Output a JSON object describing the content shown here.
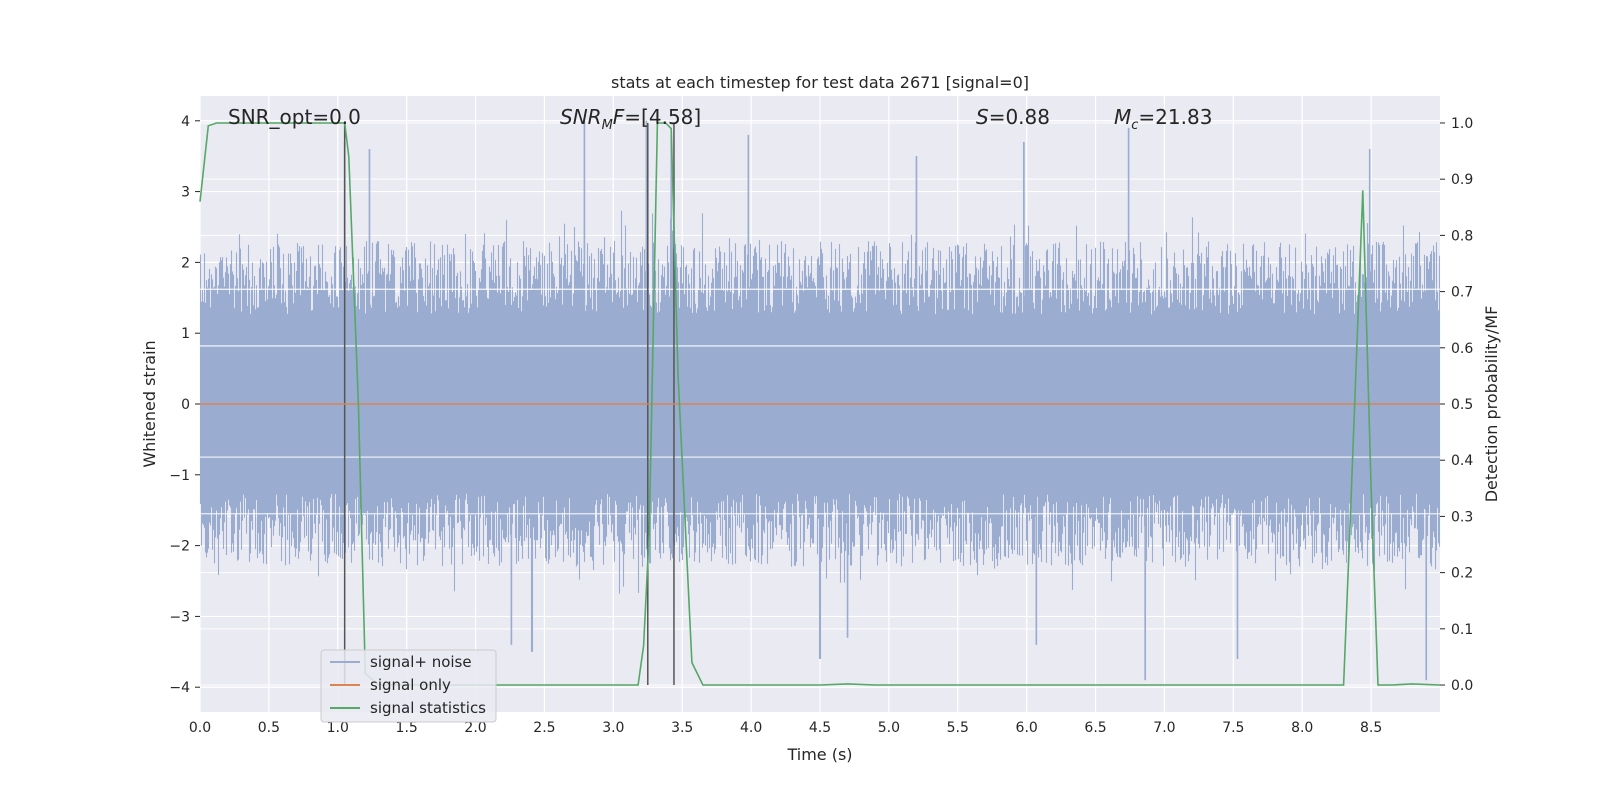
{
  "chart_data": {
    "type": "line",
    "title": "stats at each timestep for test data 2671 [signal=0]",
    "xlabel": "Time (s)",
    "ylabel": "Whitened strain",
    "ylabel_right": "Detection probability/MF",
    "xlim": [
      0.0,
      9.0
    ],
    "ylim": [
      -4.35,
      4.35
    ],
    "ylim_right": [
      -0.048,
      1.048
    ],
    "x_ticks": [
      "0.0",
      "0.5",
      "1.0",
      "1.5",
      "2.0",
      "2.5",
      "3.0",
      "3.5",
      "4.0",
      "4.5",
      "5.0",
      "5.5",
      "6.0",
      "6.5",
      "7.0",
      "7.5",
      "8.0",
      "8.5"
    ],
    "y_ticks": [
      "4",
      "3",
      "2",
      "1",
      "0",
      "−1",
      "−2",
      "−3",
      "−4"
    ],
    "y_ticks_right": [
      "1.0",
      "0.9",
      "0.8",
      "0.7",
      "0.6",
      "0.5",
      "0.4",
      "0.3",
      "0.2",
      "0.1",
      "0.0"
    ],
    "annotations": {
      "snr_opt": "SNR_opt=0.0",
      "snr_mf_sym": "SNR",
      "snr_mf_sub": "M",
      "snr_mf_rest": "F=[4.58]",
      "s_sym": "S",
      "s_rest": "=0.88",
      "mc_sym": "M",
      "mc_sub": "c",
      "mc_rest": "=21.83"
    },
    "legend": {
      "placement": "lower-left",
      "entries": [
        "signal+ noise",
        "signal only",
        "signal statistics"
      ]
    },
    "grid": true,
    "noise_envelope": {
      "typical_abs_max": 2.3,
      "peak_times": [
        1.05,
        1.23,
        2.79,
        3.24,
        3.42,
        3.98,
        5.2,
        5.98,
        6.74,
        8.49
      ],
      "peak_values": [
        3.7,
        3.6,
        4.0,
        4.0,
        3.8,
        3.8,
        3.5,
        3.7,
        3.9,
        3.6
      ],
      "trough_times": [
        2.26,
        2.41,
        4.5,
        4.7,
        6.07,
        6.86,
        7.53,
        8.9
      ],
      "trough_values": [
        -3.4,
        -3.5,
        -3.6,
        -3.3,
        -3.4,
        -3.9,
        -3.6,
        -3.9
      ]
    },
    "signal_only": {
      "value": 0.0
    },
    "signal_statistics": {
      "x": [
        0.0,
        0.06,
        0.12,
        0.5,
        1.0,
        1.05,
        1.08,
        1.15,
        1.2,
        1.3,
        1.5,
        2.0,
        2.5,
        3.0,
        3.18,
        3.22,
        3.26,
        3.32,
        3.38,
        3.42,
        3.47,
        3.57,
        3.65,
        3.8,
        4.0,
        4.5,
        4.7,
        4.9,
        5.5,
        6.0,
        7.0,
        8.0,
        8.3,
        8.35,
        8.44,
        8.5,
        8.55,
        8.65,
        8.8,
        9.0
      ],
      "y": [
        0.86,
        0.995,
        1.0,
        1.0,
        1.0,
        1.0,
        0.94,
        0.5,
        0.02,
        0.0,
        0.0,
        0.0,
        0.0,
        0.0,
        0.0,
        0.07,
        0.27,
        1.0,
        1.0,
        0.99,
        0.55,
        0.04,
        0.0,
        0.0,
        0.0,
        0.0,
        0.002,
        0.0,
        0.0,
        0.0,
        0.0,
        0.0,
        0.0,
        0.3,
        0.88,
        0.35,
        0.0,
        0.0,
        0.002,
        0.0
      ]
    },
    "detection_markers": [
      1.05,
      3.25,
      3.44
    ],
    "colors": {
      "background": "#eaeaf2",
      "grid": "#ffffff",
      "noise": "#9aacd0",
      "signal_only": "#dd8452",
      "statistics": "#55a868",
      "marker": "#555555",
      "text": "#262626"
    }
  }
}
